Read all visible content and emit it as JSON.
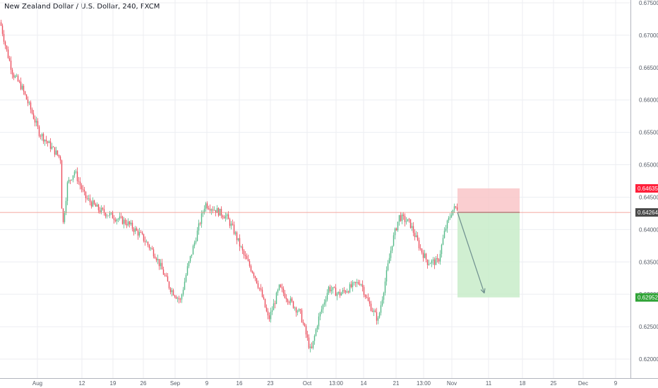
{
  "header": {
    "title": "New Zealand Dollar / U.S. Dollar, 240, FXCM"
  },
  "colors": {
    "up": "#53b987",
    "down": "#eb4d5c",
    "grid": "#eceef2",
    "axis_text": "#555b66",
    "current_line": "#f28b82",
    "stop_zone": "#f9c5c8",
    "target_zone": "#c8ecc9",
    "stop_badge": "#ff1f3a",
    "target_badge": "#2fa336",
    "current_badge": "#4a4a4a",
    "arrow": "#6f8f8f"
  },
  "chart_data": {
    "type": "candlestick",
    "title": "New Zealand Dollar / U.S. Dollar, 240, FXCM",
    "ylim": [
      0.618,
      0.675
    ],
    "y_ticks": [
      "0.67500",
      "0.67000",
      "0.66500",
      "0.66000",
      "0.65500",
      "0.65000",
      "0.64500",
      "0.64000",
      "0.63500",
      "0.63000",
      "0.62500",
      "0.62000"
    ],
    "x_ticks": [
      "Aug",
      "12",
      "19",
      "26",
      "Sep",
      "9",
      "16",
      "23",
      "Oct",
      "13:00",
      "14",
      "21",
      "13:00",
      "Nov",
      "11",
      "18",
      "25",
      "Dec",
      "9"
    ],
    "grid": true,
    "price_path": [
      [
        0,
        0.672
      ],
      [
        8,
        0.668
      ],
      [
        18,
        0.664
      ],
      [
        30,
        0.662
      ],
      [
        45,
        0.658
      ],
      [
        55,
        0.655
      ],
      [
        70,
        0.653
      ],
      [
        85,
        0.651
      ],
      [
        88,
        0.64
      ],
      [
        95,
        0.647
      ],
      [
        105,
        0.649
      ],
      [
        120,
        0.645
      ],
      [
        140,
        0.643
      ],
      [
        160,
        0.642
      ],
      [
        180,
        0.641
      ],
      [
        200,
        0.639
      ],
      [
        220,
        0.636
      ],
      [
        240,
        0.631
      ],
      [
        255,
        0.629
      ],
      [
        265,
        0.634
      ],
      [
        280,
        0.64
      ],
      [
        290,
        0.644
      ],
      [
        305,
        0.643
      ],
      [
        320,
        0.642
      ],
      [
        330,
        0.64
      ],
      [
        345,
        0.636
      ],
      [
        360,
        0.633
      ],
      [
        370,
        0.63
      ],
      [
        380,
        0.626
      ],
      [
        395,
        0.631
      ],
      [
        410,
        0.629
      ],
      [
        425,
        0.627
      ],
      [
        440,
        0.621
      ],
      [
        450,
        0.626
      ],
      [
        465,
        0.631
      ],
      [
        480,
        0.63
      ],
      [
        495,
        0.631
      ],
      [
        510,
        0.632
      ],
      [
        520,
        0.629
      ],
      [
        535,
        0.626
      ],
      [
        545,
        0.632
      ],
      [
        555,
        0.638
      ],
      [
        565,
        0.642
      ],
      [
        580,
        0.641
      ],
      [
        595,
        0.637
      ],
      [
        605,
        0.635
      ],
      [
        620,
        0.635
      ],
      [
        630,
        0.64
      ],
      [
        640,
        0.643
      ],
      [
        648,
        0.6435
      ]
    ],
    "current_price": "0.64264",
    "current_price_value": 0.64264,
    "trade_setup": {
      "direction": "short",
      "stop_label": "0.64635",
      "stop_value": 0.64635,
      "target_label": "0.62952",
      "target_value": 0.62952,
      "entry_value": 0.64264
    }
  }
}
